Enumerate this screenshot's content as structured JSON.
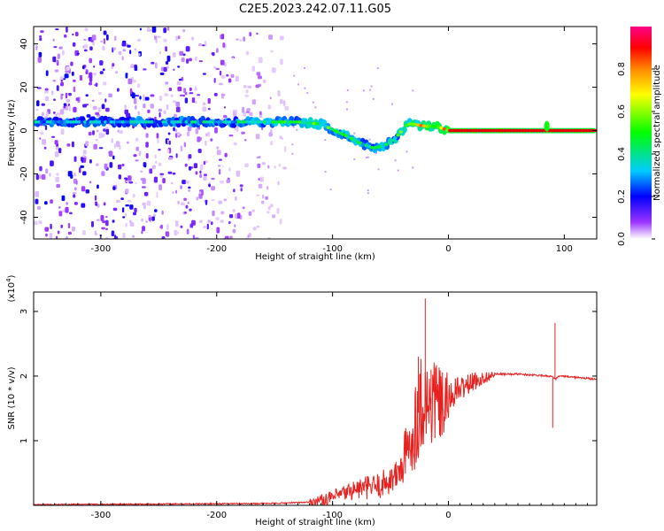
{
  "title": "C2E5.2023.242.07.11.G05",
  "chart_data": [
    {
      "type": "heatmap",
      "xlabel": "Height of straight line (km)",
      "ylabel": "Frequency (Hz)",
      "xlim": [
        -358,
        128
      ],
      "ylim": [
        -50,
        48
      ],
      "xticks": [
        "-300",
        "-200",
        "-100",
        "0",
        "100"
      ],
      "xtick_values": [
        -300,
        -200,
        -100,
        0,
        100
      ],
      "yticks": [
        "-40",
        "-20",
        "0",
        "20",
        "40"
      ],
      "ytick_values": [
        -40,
        -20,
        0,
        20,
        40
      ],
      "colorbar": {
        "label": "Normalized spectral amplitude",
        "ticks": [
          "0.0",
          "0.2",
          "0.4",
          "0.6",
          "0.8"
        ],
        "tick_values": [
          0.0,
          0.2,
          0.4,
          0.6,
          0.8
        ],
        "range": [
          0,
          1
        ],
        "colormap": [
          "#ffffff",
          "#8800ff",
          "#0000ff",
          "#00ffff",
          "#00ff00",
          "#ffff00",
          "#ff8800",
          "#ff0000",
          "#ff00aa"
        ]
      },
      "ridge": {
        "x": [
          -355,
          -300,
          -250,
          -200,
          -150,
          -130,
          -110,
          -90,
          -75,
          -65,
          -55,
          -45,
          -35,
          -30,
          -20,
          -10,
          0,
          50,
          128
        ],
        "frequency": [
          4,
          4,
          4,
          4,
          4,
          4,
          3,
          -2,
          -6,
          -8,
          -7,
          -3,
          3,
          3,
          2,
          2,
          0,
          0,
          0
        ],
        "amplitude": [
          0.35,
          0.35,
          0.35,
          0.4,
          0.45,
          0.5,
          0.55,
          0.5,
          0.45,
          0.45,
          0.5,
          0.5,
          0.6,
          0.7,
          0.75,
          0.8,
          0.85,
          0.85,
          0.85
        ]
      },
      "noise_extent_x": [
        -358,
        -140
      ],
      "grid": false
    },
    {
      "type": "line",
      "xlabel": "Height of straight line (km)",
      "ylabel": "SNR (10 * v/v)",
      "yscale_note": "(x10",
      "yscale_exp": "4",
      "yscale_close": ")",
      "xlim": [
        -358,
        128
      ],
      "ylim": [
        0,
        3.3
      ],
      "xticks": [
        "-300",
        "-200",
        "-100",
        "0"
      ],
      "xtick_values": [
        -300,
        -200,
        -100,
        0
      ],
      "yticks": [
        "1",
        "2",
        "3"
      ],
      "ytick_values": [
        1,
        2,
        3
      ],
      "series": [
        {
          "color": "#e8211f",
          "x": [
            -358,
            -250,
            -150,
            -120,
            -100,
            -80,
            -60,
            -45,
            -35,
            -28,
            -22,
            -18,
            -12,
            -5,
            5,
            20,
            40,
            60,
            80,
            88,
            92,
            96,
            110,
            128
          ],
          "y": [
            0.01,
            0.02,
            0.03,
            0.05,
            0.12,
            0.25,
            0.3,
            0.45,
            0.8,
            1.3,
            1.7,
            1.5,
            1.65,
            1.5,
            1.75,
            1.9,
            2.03,
            2.03,
            2.01,
            2.0,
            1.95,
            2.0,
            1.98,
            1.95
          ],
          "spikes": [
            {
              "x": -20,
              "y": 3.2
            },
            {
              "x": -26,
              "y": 2.3
            },
            {
              "x": -15,
              "y": 2.1
            },
            {
              "x": 92,
              "y": 2.82
            },
            {
              "x": 90,
              "y": 1.2
            }
          ]
        }
      ],
      "grid": false
    }
  ]
}
